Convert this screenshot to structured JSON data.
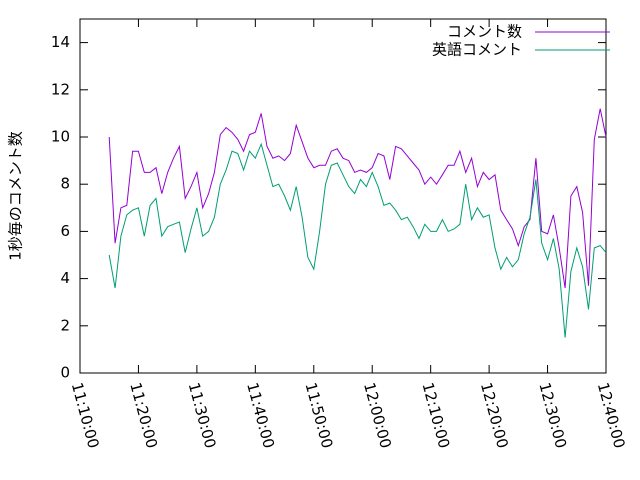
{
  "chart_data": {
    "type": "line",
    "ylabel": "1秒毎のコメント数",
    "x": [
      "11:15:00",
      "11:16:00",
      "11:17:00",
      "11:18:00",
      "11:19:00",
      "11:20:00",
      "11:21:00",
      "11:22:00",
      "11:23:00",
      "11:24:00",
      "11:25:00",
      "11:26:00",
      "11:27:00",
      "11:28:00",
      "11:29:00",
      "11:30:00",
      "11:31:00",
      "11:32:00",
      "11:33:00",
      "11:34:00",
      "11:35:00",
      "11:36:00",
      "11:37:00",
      "11:38:00",
      "11:39:00",
      "11:40:00",
      "11:41:00",
      "11:42:00",
      "11:43:00",
      "11:44:00",
      "11:45:00",
      "11:46:00",
      "11:47:00",
      "11:48:00",
      "11:49:00",
      "11:50:00",
      "11:51:00",
      "11:52:00",
      "11:53:00",
      "11:54:00",
      "11:55:00",
      "11:56:00",
      "11:57:00",
      "11:58:00",
      "11:59:00",
      "12:00:00",
      "12:01:00",
      "12:02:00",
      "12:03:00",
      "12:04:00",
      "12:05:00",
      "12:06:00",
      "12:07:00",
      "12:08:00",
      "12:09:00",
      "12:10:00",
      "12:11:00",
      "12:12:00",
      "12:13:00",
      "12:14:00",
      "12:15:00",
      "12:16:00",
      "12:17:00",
      "12:18:00",
      "12:19:00",
      "12:20:00",
      "12:21:00",
      "12:22:00",
      "12:23:00",
      "12:24:00",
      "12:25:00",
      "12:26:00",
      "12:27:00",
      "12:28:00",
      "12:29:00",
      "12:30:00",
      "12:31:00",
      "12:32:00",
      "12:33:00",
      "12:34:00",
      "12:35:00",
      "12:36:00",
      "12:37:00",
      "12:38:00",
      "12:39:00",
      "12:40:00"
    ],
    "series": [
      {
        "name": "コメント数",
        "color": "#9400d3",
        "values": [
          10.0,
          5.5,
          7.0,
          7.1,
          9.4,
          9.4,
          8.5,
          8.5,
          8.7,
          7.6,
          8.5,
          9.1,
          9.6,
          7.4,
          7.9,
          8.5,
          7.0,
          7.6,
          8.5,
          10.1,
          10.4,
          10.2,
          9.9,
          9.4,
          10.1,
          10.2,
          11.0,
          9.6,
          9.1,
          9.2,
          9.0,
          9.3,
          10.5,
          9.8,
          9.1,
          8.7,
          8.8,
          8.8,
          9.4,
          9.5,
          9.1,
          9.0,
          8.5,
          8.6,
          8.5,
          8.7,
          9.3,
          9.2,
          8.2,
          9.6,
          9.5,
          9.2,
          8.9,
          8.6,
          8.0,
          8.3,
          8.0,
          8.4,
          8.8,
          8.8,
          9.4,
          8.5,
          9.1,
          7.9,
          8.5,
          8.2,
          8.4,
          6.9,
          6.5,
          6.1,
          5.4,
          6.2,
          6.5,
          9.1,
          6.0,
          5.9,
          6.7,
          5.3,
          3.6,
          7.5,
          7.9,
          6.8,
          3.7,
          9.9,
          11.2,
          10.0
        ]
      },
      {
        "name": "英語コメント",
        "color": "#009e73",
        "values": [
          5.0,
          3.6,
          5.8,
          6.7,
          6.9,
          7.0,
          5.8,
          7.1,
          7.4,
          5.8,
          6.2,
          6.3,
          6.4,
          5.1,
          6.1,
          7.0,
          5.8,
          6.0,
          6.6,
          8.0,
          8.6,
          9.4,
          9.3,
          8.6,
          9.4,
          9.1,
          9.7,
          8.8,
          7.9,
          8.0,
          7.5,
          6.9,
          7.9,
          6.6,
          4.9,
          4.4,
          6.0,
          8.0,
          8.8,
          8.9,
          8.4,
          7.9,
          7.6,
          8.2,
          7.9,
          8.5,
          7.9,
          7.1,
          7.2,
          6.9,
          6.5,
          6.6,
          6.2,
          5.7,
          6.3,
          6.0,
          6.0,
          6.5,
          6.0,
          6.1,
          6.3,
          8.0,
          6.5,
          7.0,
          6.6,
          6.7,
          5.3,
          4.4,
          4.9,
          4.5,
          4.8,
          5.9,
          6.6,
          8.2,
          5.5,
          4.8,
          5.7,
          4.4,
          1.5,
          4.3,
          5.3,
          4.5,
          2.7,
          5.3,
          5.4,
          5.1
        ]
      }
    ],
    "xlim": [
      "11:10:00",
      "12:40:00"
    ],
    "xticks": [
      "11:10:00",
      "11:20:00",
      "11:30:00",
      "11:40:00",
      "11:50:00",
      "12:00:00",
      "12:10:00",
      "12:20:00",
      "12:30:00",
      "12:40:00"
    ],
    "ylim": [
      0,
      15
    ],
    "yticks": [
      0,
      2,
      4,
      6,
      8,
      10,
      12,
      14
    ],
    "legend": "top-right"
  }
}
